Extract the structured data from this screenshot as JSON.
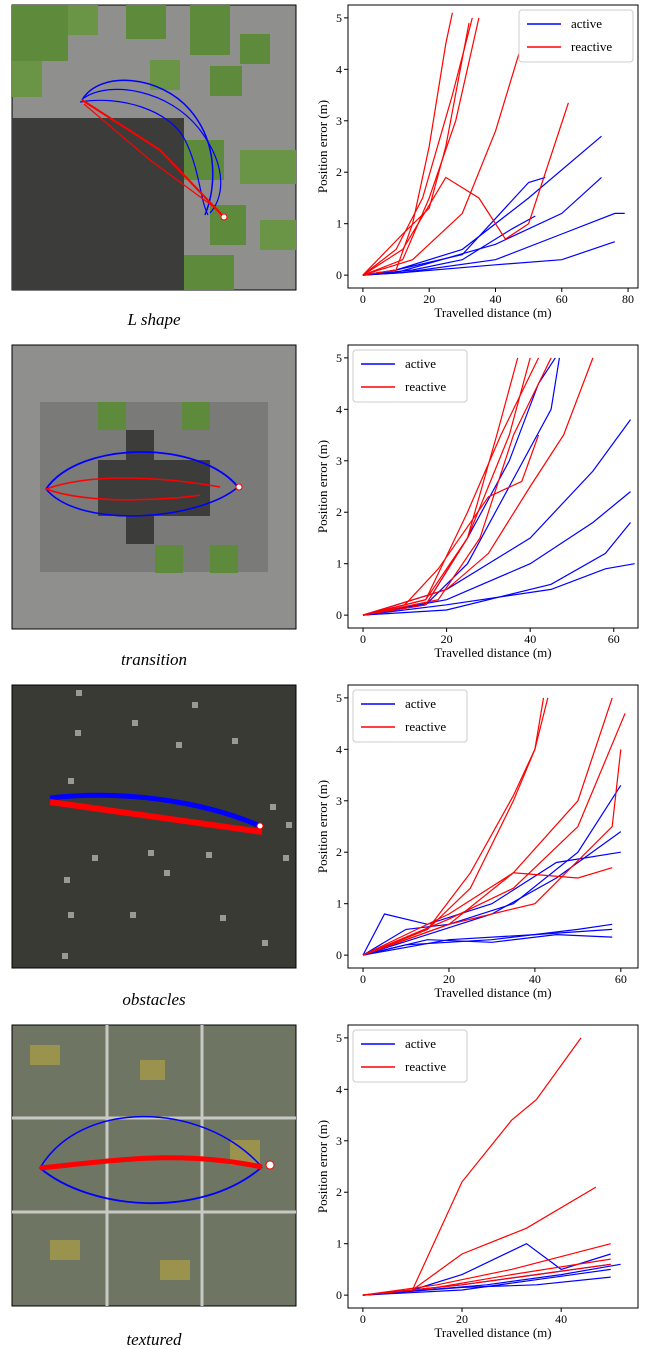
{
  "chart_data": [
    {
      "type": "line",
      "caption": "L shape",
      "xlabel": "Travelled distance (m)",
      "ylabel": "Position error (m)",
      "xlim": [
        -4.5,
        83
      ],
      "xticks": [
        0,
        20,
        40,
        60,
        80
      ],
      "ylim": [
        -0.25,
        5.25
      ],
      "yticks": [
        0,
        1,
        2,
        3,
        4,
        5
      ],
      "legend": "upper right",
      "series": [
        {
          "name": "active",
          "color": "#0000ff",
          "runs": [
            {
              "x": [
                0,
                10,
                30,
                50,
                72
              ],
              "values": [
                0,
                0.1,
                0.5,
                1.5,
                2.7
              ]
            },
            {
              "x": [
                0,
                10,
                30,
                50,
                55
              ],
              "values": [
                0,
                0.1,
                0.4,
                1.8,
                1.9
              ]
            },
            {
              "x": [
                0,
                10,
                40,
                60,
                72
              ],
              "values": [
                0,
                0.05,
                0.6,
                1.2,
                1.9
              ]
            },
            {
              "x": [
                0,
                12,
                40,
                60,
                76,
                79
              ],
              "values": [
                0,
                0.05,
                0.3,
                0.8,
                1.2,
                1.2
              ]
            },
            {
              "x": [
                0,
                12,
                40,
                60,
                76
              ],
              "values": [
                0,
                0.05,
                0.2,
                0.3,
                0.65
              ]
            },
            {
              "x": [
                0,
                15,
                30,
                45,
                52
              ],
              "values": [
                0,
                0.1,
                0.3,
                0.9,
                1.15
              ]
            }
          ]
        },
        {
          "name": "reactive",
          "color": "#ff0000",
          "runs": [
            {
              "x": [
                0,
                10,
                15,
                20,
                25,
                27
              ],
              "values": [
                0,
                0.1,
                1,
                2.5,
                4.5,
                5.1
              ]
            },
            {
              "x": [
                0,
                12,
                20,
                28,
                35
              ],
              "values": [
                0,
                0.3,
                1.5,
                3,
                5
              ]
            },
            {
              "x": [
                0,
                10,
                18,
                27,
                33
              ],
              "values": [
                0,
                0.5,
                1.5,
                3.5,
                5
              ]
            },
            {
              "x": [
                0,
                12,
                25,
                35,
                43,
                50,
                62
              ],
              "values": [
                0,
                0.5,
                1.9,
                1.5,
                0.7,
                1,
                3.35
              ]
            },
            {
              "x": [
                0,
                15,
                30,
                40,
                48,
                52
              ],
              "values": [
                0,
                0.3,
                1.2,
                2.8,
                4.5,
                5
              ]
            },
            {
              "x": [
                0,
                12,
                20,
                25,
                32
              ],
              "values": [
                0,
                0.8,
                1.3,
                2.5,
                4.9
              ]
            }
          ]
        }
      ]
    },
    {
      "type": "line",
      "caption": "transition",
      "xlabel": "Travelled distance (m)",
      "ylabel": "Position error (m)",
      "xlim": [
        -3.6,
        65.8
      ],
      "xticks": [
        0,
        20,
        40,
        60
      ],
      "ylim": [
        -0.25,
        5.25
      ],
      "yticks": [
        0,
        1,
        2,
        3,
        4,
        5
      ],
      "legend": "upper left",
      "series": [
        {
          "name": "active",
          "color": "#0000ff",
          "runs": [
            {
              "x": [
                0,
                15,
                25,
                35,
                45,
                47
              ],
              "values": [
                0,
                0.2,
                1,
                2.5,
                4,
                5
              ]
            },
            {
              "x": [
                0,
                15,
                25,
                35,
                42,
                46
              ],
              "values": [
                0,
                0.2,
                1.5,
                3,
                4.5,
                5
              ]
            },
            {
              "x": [
                0,
                20,
                40,
                55,
                64
              ],
              "values": [
                0,
                0.5,
                1.5,
                2.8,
                3.8
              ]
            },
            {
              "x": [
                0,
                20,
                40,
                55,
                64
              ],
              "values": [
                0,
                0.3,
                1,
                1.8,
                2.4
              ]
            },
            {
              "x": [
                0,
                20,
                45,
                58,
                65
              ],
              "values": [
                0,
                0.2,
                0.5,
                0.9,
                1
              ]
            },
            {
              "x": [
                0,
                20,
                45,
                58,
                64
              ],
              "values": [
                0,
                0.1,
                0.6,
                1.2,
                1.8
              ]
            }
          ]
        },
        {
          "name": "reactive",
          "color": "#ff0000",
          "runs": [
            {
              "x": [
                0,
                15,
                25,
                32,
                37
              ],
              "values": [
                0,
                0.3,
                1.5,
                3.5,
                5
              ]
            },
            {
              "x": [
                0,
                15,
                25,
                35,
                40
              ],
              "values": [
                0,
                0.2,
                1.5,
                3.5,
                5
              ]
            },
            {
              "x": [
                0,
                10,
                18,
                30,
                38,
                42
              ],
              "values": [
                0,
                0.2,
                0.9,
                2.3,
                2.6,
                3.5
              ]
            },
            {
              "x": [
                0,
                20,
                30,
                40,
                48,
                55
              ],
              "values": [
                0,
                0.5,
                1.2,
                2.5,
                3.5,
                5
              ]
            },
            {
              "x": [
                0,
                15,
                25,
                33,
                42
              ],
              "values": [
                0,
                0.3,
                2,
                3.5,
                5
              ]
            },
            {
              "x": [
                0,
                18,
                28,
                36,
                45
              ],
              "values": [
                0,
                0.3,
                1.5,
                3.5,
                5
              ]
            }
          ]
        }
      ]
    },
    {
      "type": "line",
      "caption": "obstacles",
      "xlabel": "Travelled distance (m)",
      "ylabel": "Position error (m)",
      "xlim": [
        -3.5,
        64
      ],
      "xticks": [
        0,
        20,
        40,
        60
      ],
      "ylim": [
        -0.25,
        5.25
      ],
      "yticks": [
        0,
        1,
        2,
        3,
        4,
        5
      ],
      "legend": "upper left",
      "series": [
        {
          "name": "active",
          "color": "#0000ff",
          "runs": [
            {
              "x": [
                0,
                10,
                20,
                35,
                50,
                60
              ],
              "values": [
                0,
                0.5,
                0.6,
                1,
                2,
                3.3
              ]
            },
            {
              "x": [
                0,
                15,
                30,
                45,
                60
              ],
              "values": [
                0,
                0.4,
                0.8,
                1.5,
                2.4
              ]
            },
            {
              "x": [
                0,
                5,
                15,
                30,
                45,
                60
              ],
              "values": [
                0,
                0.8,
                0.6,
                1,
                1.8,
                2
              ]
            },
            {
              "x": [
                0,
                10,
                30,
                50,
                58
              ],
              "values": [
                0,
                0.2,
                0.3,
                0.5,
                0.6
              ]
            },
            {
              "x": [
                0,
                15,
                30,
                45,
                58
              ],
              "values": [
                0,
                0.3,
                0.25,
                0.4,
                0.35
              ]
            },
            {
              "x": [
                0,
                20,
                40,
                58
              ],
              "values": [
                0,
                0.3,
                0.4,
                0.5
              ]
            }
          ]
        },
        {
          "name": "reactive",
          "color": "#ff0000",
          "runs": [
            {
              "x": [
                0,
                15,
                25,
                35,
                40,
                42
              ],
              "values": [
                0,
                0.5,
                1.3,
                3,
                4,
                5
              ]
            },
            {
              "x": [
                0,
                15,
                25,
                35,
                40,
                43
              ],
              "values": [
                0,
                0.5,
                1.6,
                3.1,
                4,
                5
              ]
            },
            {
              "x": [
                0,
                20,
                35,
                50,
                58
              ],
              "values": [
                0,
                0.8,
                1.6,
                3,
                5
              ]
            },
            {
              "x": [
                0,
                20,
                35,
                50,
                61
              ],
              "values": [
                0,
                0.7,
                1.3,
                2.5,
                4.7
              ]
            },
            {
              "x": [
                0,
                20,
                40,
                58,
                60
              ],
              "values": [
                0,
                0.6,
                1,
                2.5,
                4
              ]
            },
            {
              "x": [
                0,
                20,
                35,
                50,
                58
              ],
              "values": [
                0,
                0.6,
                1.6,
                1.5,
                1.7
              ]
            }
          ]
        }
      ]
    },
    {
      "type": "line",
      "caption": "textured",
      "xlabel": "Travelled distance (m)",
      "ylabel": "Position error (m)",
      "xlim": [
        -3,
        55.5
      ],
      "xticks": [
        0,
        20,
        40
      ],
      "ylim": [
        -0.25,
        5.25
      ],
      "yticks": [
        0,
        1,
        2,
        3,
        4,
        5
      ],
      "legend": "upper left",
      "series": [
        {
          "name": "active",
          "color": "#0000ff",
          "runs": [
            {
              "x": [
                0,
                10,
                20,
                33,
                40,
                50
              ],
              "values": [
                0,
                0.1,
                0.4,
                1,
                0.5,
                0.8
              ]
            },
            {
              "x": [
                0,
                20,
                35,
                50
              ],
              "values": [
                0,
                0.2,
                0.4,
                0.6
              ]
            },
            {
              "x": [
                0,
                20,
                35,
                50
              ],
              "values": [
                0,
                0.1,
                0.3,
                0.5
              ]
            },
            {
              "x": [
                0,
                25,
                40,
                52
              ],
              "values": [
                0,
                0.2,
                0.4,
                0.6
              ]
            },
            {
              "x": [
                0,
                20,
                35,
                50
              ],
              "values": [
                0,
                0.15,
                0.2,
                0.35
              ]
            }
          ]
        },
        {
          "name": "reactive",
          "color": "#ff0000",
          "runs": [
            {
              "x": [
                0,
                10,
                20,
                30,
                35,
                44
              ],
              "values": [
                0,
                0.1,
                2.2,
                3.4,
                3.8,
                5
              ]
            },
            {
              "x": [
                0,
                10,
                20,
                33,
                47
              ],
              "values": [
                0,
                0.1,
                0.8,
                1.3,
                2.1
              ]
            },
            {
              "x": [
                0,
                15,
                30,
                50
              ],
              "values": [
                0,
                0.2,
                0.5,
                1
              ]
            },
            {
              "x": [
                0,
                15,
                30,
                50
              ],
              "values": [
                0,
                0.15,
                0.4,
                0.7
              ]
            },
            {
              "x": [
                0,
                20,
                35,
                50
              ],
              "values": [
                0,
                0.2,
                0.4,
                0.6
              ]
            }
          ]
        }
      ]
    }
  ]
}
